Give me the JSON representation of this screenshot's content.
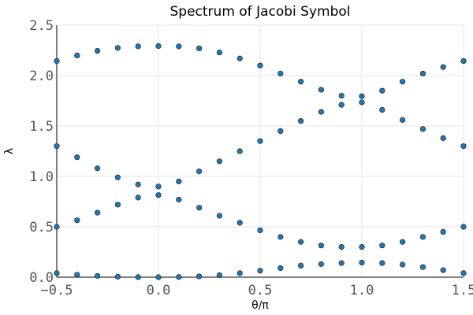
{
  "chart_data": {
    "type": "scatter",
    "title": "Spectrum of Jacobi Symbol",
    "xlabel": "θ/π",
    "ylabel": "λ",
    "xlim": [
      -0.5,
      1.5
    ],
    "ylim": [
      0.0,
      2.5
    ],
    "xticks": [
      -0.5,
      0.0,
      0.5,
      1.0,
      1.5
    ],
    "xtick_labels": [
      "−0.5",
      "0.0",
      "0.5",
      "1.0",
      "1.5"
    ],
    "yticks": [
      0.0,
      0.5,
      1.0,
      1.5,
      2.0,
      2.5
    ],
    "ytick_labels": [
      "0.0",
      "0.5",
      "1.0",
      "1.5",
      "2.0",
      "2.5"
    ],
    "grid": true,
    "legend": "none",
    "marker_color": "#1f77b4",
    "series": [
      {
        "x": [
          -0.5,
          -0.4,
          -0.3,
          -0.2,
          -0.1,
          0.0,
          0.1,
          0.2,
          0.3,
          0.4,
          0.5,
          0.6,
          0.7,
          0.8,
          0.9,
          1.0,
          1.1,
          1.2,
          1.3,
          1.4,
          1.5
        ],
        "values": [
          2.145,
          2.2,
          2.245,
          2.275,
          2.29,
          2.293,
          2.29,
          2.27,
          2.23,
          2.17,
          2.1,
          2.02,
          1.94,
          1.86,
          1.8,
          1.795,
          1.85,
          1.94,
          2.02,
          2.085,
          2.145
        ]
      },
      {
        "x": [
          -0.5,
          -0.4,
          -0.3,
          -0.2,
          -0.1,
          0.0,
          0.1,
          0.2,
          0.3,
          0.4,
          0.5,
          0.6,
          0.7,
          0.8,
          0.9,
          1.0,
          1.1,
          1.2,
          1.3,
          1.4,
          1.5
        ],
        "values": [
          1.3,
          1.19,
          1.08,
          0.99,
          0.92,
          0.9,
          0.95,
          1.05,
          1.15,
          1.25,
          1.35,
          1.45,
          1.55,
          1.64,
          1.71,
          1.735,
          1.66,
          1.56,
          1.47,
          1.38,
          1.3
        ]
      },
      {
        "x": [
          -0.5,
          -0.4,
          -0.3,
          -0.2,
          -0.1,
          0.0,
          0.1,
          0.2,
          0.3,
          0.4,
          0.5,
          0.6,
          0.7,
          0.8,
          0.9,
          1.0,
          1.1,
          1.2,
          1.3,
          1.4,
          1.5
        ],
        "values": [
          0.5,
          0.565,
          0.64,
          0.72,
          0.79,
          0.815,
          0.77,
          0.69,
          0.61,
          0.54,
          0.465,
          0.4,
          0.35,
          0.315,
          0.3,
          0.3,
          0.315,
          0.35,
          0.4,
          0.45,
          0.5
        ]
      },
      {
        "x": [
          -0.5,
          -0.4,
          -0.3,
          -0.2,
          -0.1,
          0.0,
          0.1,
          0.2,
          0.3,
          0.4,
          0.5,
          0.6,
          0.7,
          0.8,
          0.9,
          1.0,
          1.1,
          1.2,
          1.3,
          1.4,
          1.5
        ],
        "values": [
          0.04,
          0.025,
          0.013,
          0.005,
          0.001,
          0.0,
          0.002,
          0.008,
          0.02,
          0.04,
          0.065,
          0.09,
          0.115,
          0.13,
          0.14,
          0.145,
          0.14,
          0.125,
          0.1,
          0.07,
          0.04
        ]
      }
    ]
  }
}
